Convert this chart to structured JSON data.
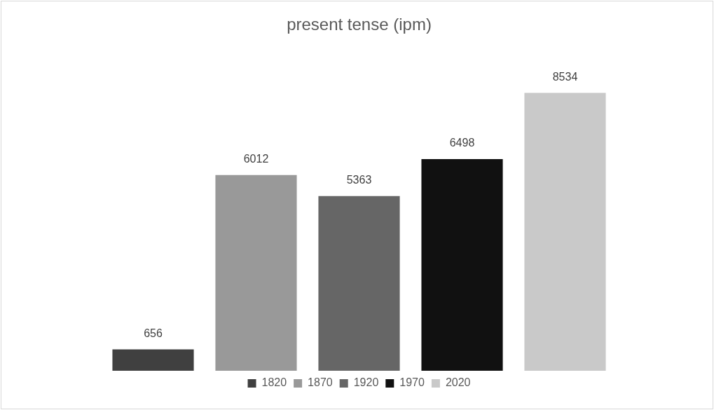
{
  "chart_data": {
    "type": "bar",
    "title": "present tense (ipm)",
    "categories": [
      null
    ],
    "series": [
      {
        "name": "1820",
        "color": "#404040",
        "values": [
          656
        ]
      },
      {
        "name": "1870",
        "color": "#999999",
        "values": [
          6012
        ]
      },
      {
        "name": "1920",
        "color": "#666666",
        "values": [
          5363
        ]
      },
      {
        "name": "1970",
        "color": "#111111",
        "values": [
          6498
        ]
      },
      {
        "name": "2020",
        "color": "#c9c9c9",
        "values": [
          8534
        ]
      }
    ],
    "data_labels": true,
    "legend": "bottom",
    "grid": false
  }
}
